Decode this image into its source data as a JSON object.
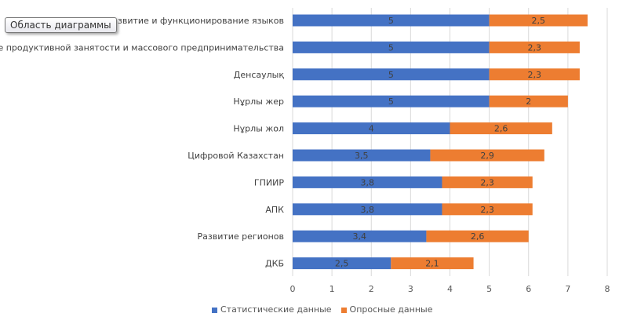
{
  "tooltip": "Область диаграммы",
  "chart_data": {
    "type": "bar",
    "orientation": "horizontal",
    "stacked": true,
    "categories": [
      "Развитие и функционирование языков",
      "Развитие продуктивной занятости и массового предпринимательства",
      "Денсаулық",
      "Нұрлы жер",
      "Нұрлы жол",
      "Цифровой Казахстан",
      "ГПИИР",
      "АПК",
      "Развитие регионов",
      "ДКБ"
    ],
    "series": [
      {
        "name": "Статистические данные",
        "color": "#4472C4",
        "values": [
          5,
          5,
          5,
          5,
          4,
          3.5,
          3.8,
          3.8,
          3.4,
          2.5
        ],
        "labels": [
          "5",
          "5",
          "5",
          "5",
          "4",
          "3,5",
          "3,8",
          "3,8",
          "3,4",
          "2,5"
        ]
      },
      {
        "name": "Опросные данные",
        "color": "#ED7D31",
        "values": [
          2.5,
          2.3,
          2.3,
          2,
          2.6,
          2.9,
          2.3,
          2.3,
          2.6,
          2.1
        ],
        "labels": [
          "2,5",
          "2,3",
          "2,3",
          "2",
          "2,6",
          "2,9",
          "2,3",
          "2,3",
          "2,6",
          "2,1"
        ]
      }
    ],
    "xlim": [
      0,
      8
    ],
    "xticks": [
      "0",
      "1",
      "2",
      "3",
      "4",
      "5",
      "6",
      "7",
      "8"
    ],
    "grid": true,
    "legend": "bottom"
  }
}
